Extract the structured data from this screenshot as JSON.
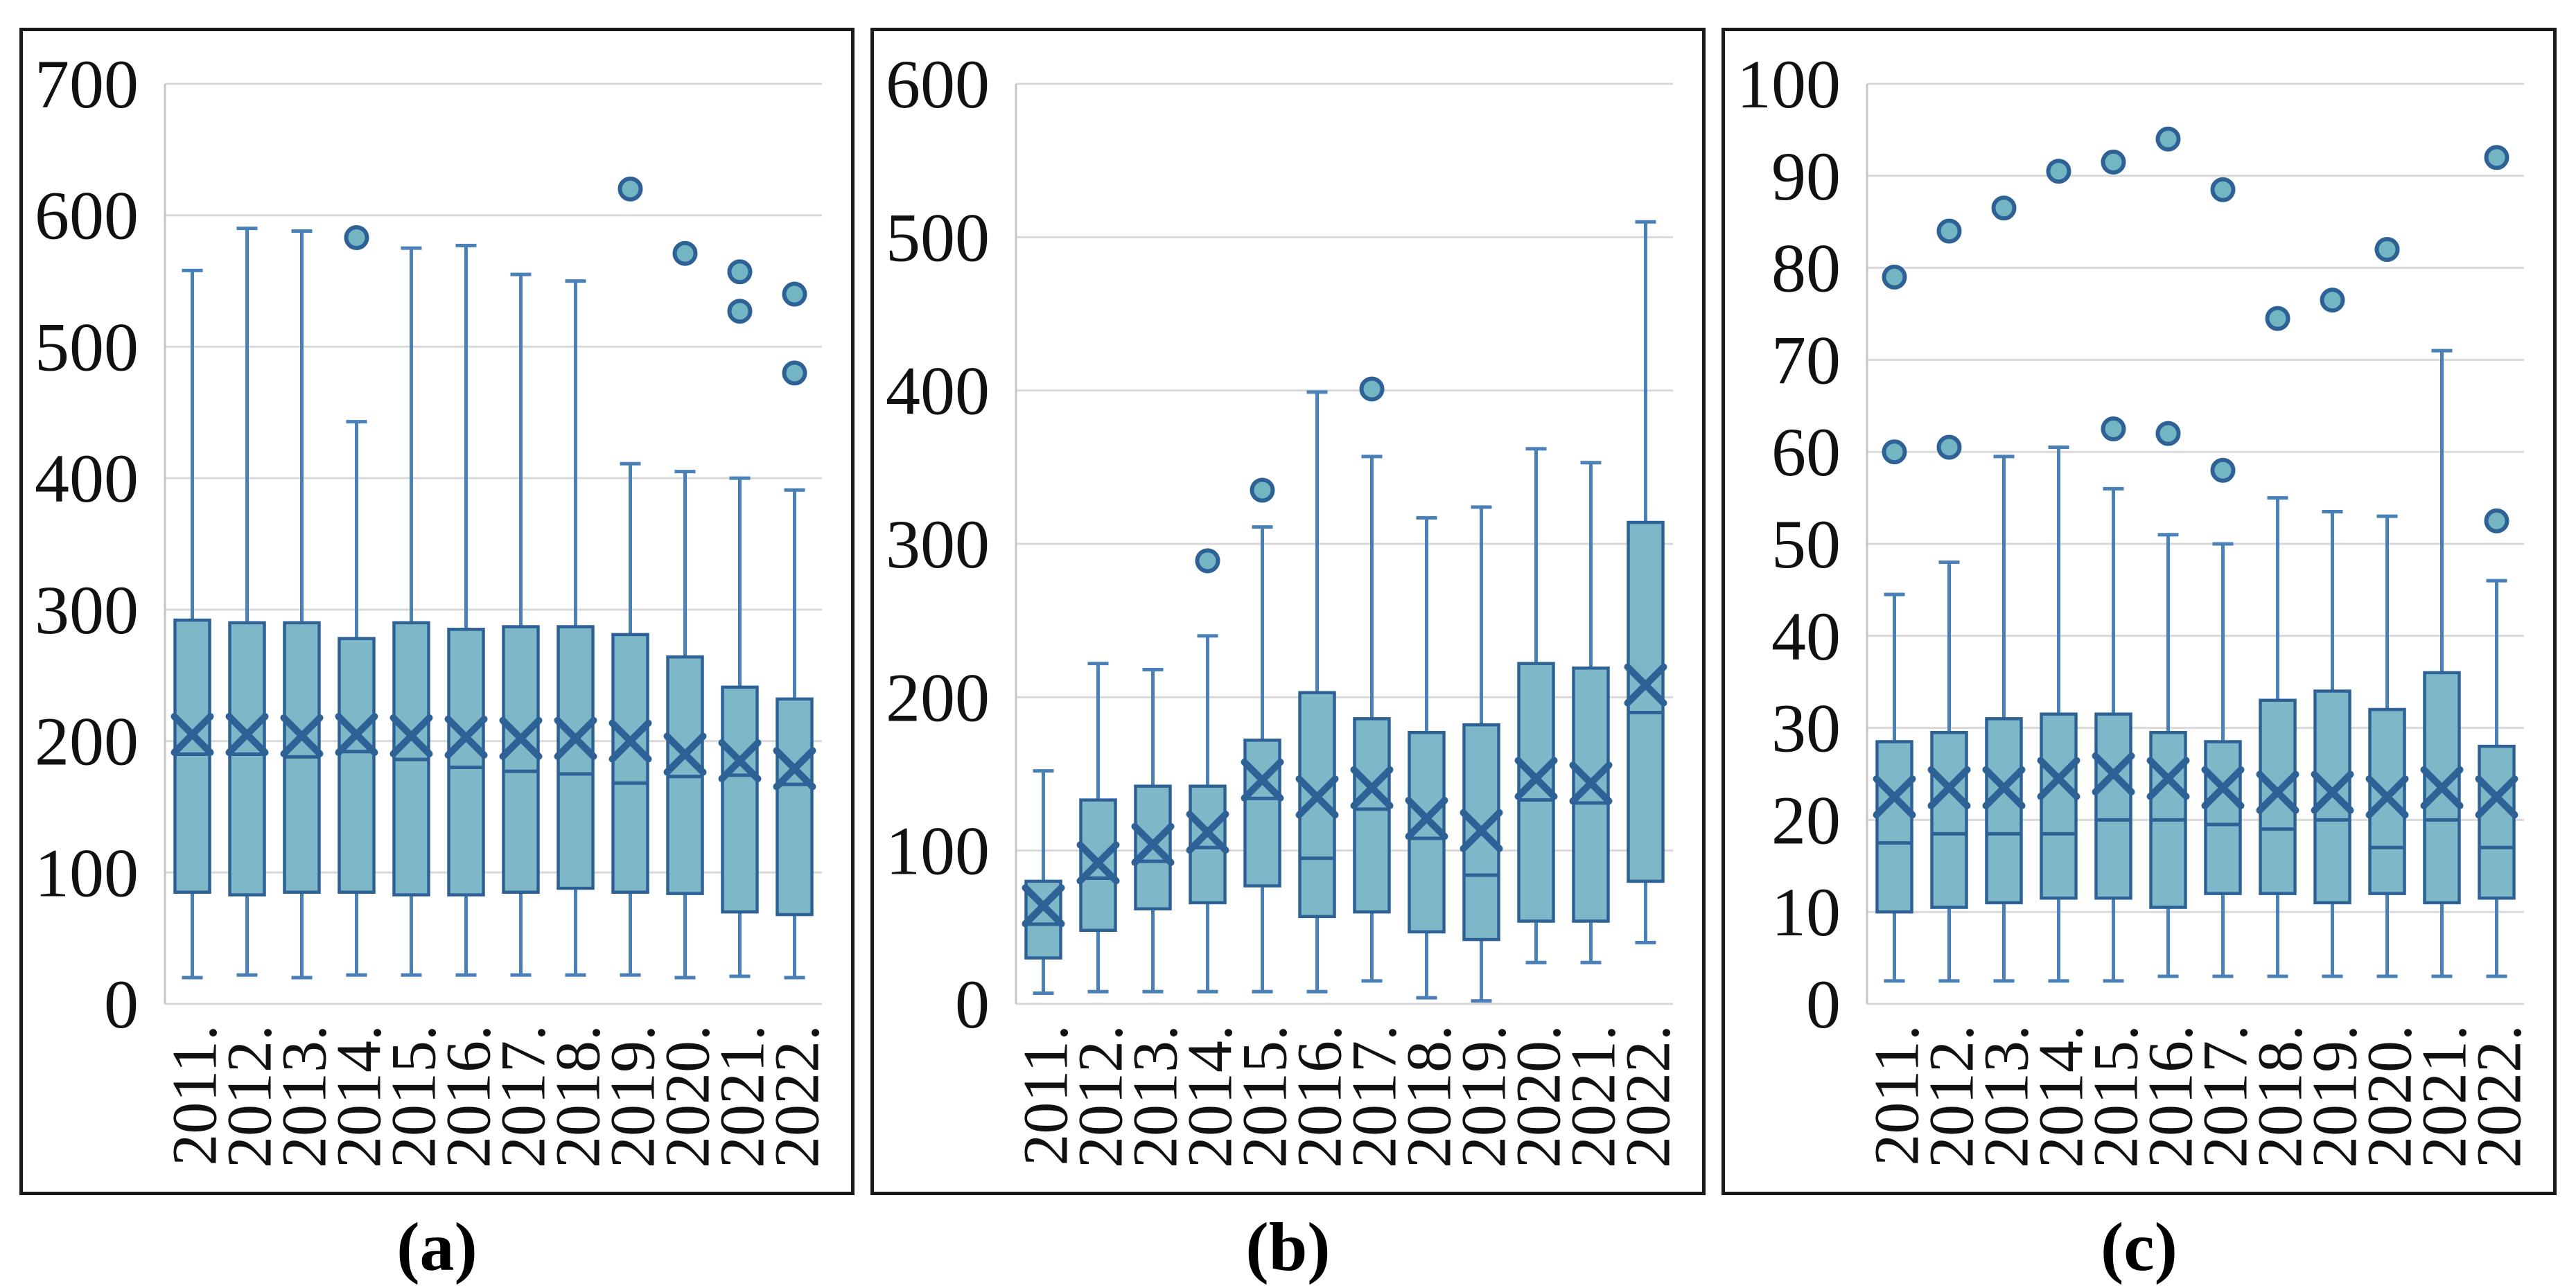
{
  "figure": {
    "background": "#ffffff",
    "panel_count": 3
  },
  "colors": {
    "box_fill": "#7EB8C8",
    "box_stroke": "#2E6296",
    "whisker": "#4A80B8",
    "median": "#2E6296",
    "mean_marker": "#2E6296",
    "outlier_fill": "#74B5C4",
    "outlier_stroke": "#2E6296",
    "gridline": "#D9D9D9",
    "axis_line": "#C6C6C6",
    "panel_border": "#1B1B1B",
    "text": "#111111"
  },
  "chart_data": [
    {
      "id": "a",
      "type": "box",
      "caption": "(a)",
      "ylim": [
        0,
        700
      ],
      "ytick_step": 100,
      "grid": true,
      "legend": false,
      "mean_marker": "x",
      "categories": [
        "2011.",
        "2012.",
        "2013.",
        "2014.",
        "2015.",
        "2016.",
        "2017.",
        "2018.",
        "2019.",
        "2020.",
        "2021.",
        "2022."
      ],
      "series": [
        {
          "category": "2011.",
          "min": 20,
          "q1": 85,
          "median": 190,
          "mean": 205,
          "q3": 292,
          "max": 558,
          "outliers": []
        },
        {
          "category": "2012.",
          "min": 22,
          "q1": 83,
          "median": 190,
          "mean": 205,
          "q3": 290,
          "max": 590,
          "outliers": []
        },
        {
          "category": "2013.",
          "min": 20,
          "q1": 85,
          "median": 188,
          "mean": 204,
          "q3": 290,
          "max": 588,
          "outliers": []
        },
        {
          "category": "2014.",
          "min": 22,
          "q1": 85,
          "median": 192,
          "mean": 205,
          "q3": 278,
          "max": 443,
          "outliers": [
            583
          ]
        },
        {
          "category": "2015.",
          "min": 22,
          "q1": 83,
          "median": 186,
          "mean": 204,
          "q3": 290,
          "max": 575,
          "outliers": []
        },
        {
          "category": "2016.",
          "min": 22,
          "q1": 83,
          "median": 180,
          "mean": 203,
          "q3": 285,
          "max": 577,
          "outliers": []
        },
        {
          "category": "2017.",
          "min": 22,
          "q1": 85,
          "median": 177,
          "mean": 202,
          "q3": 287,
          "max": 555,
          "outliers": []
        },
        {
          "category": "2018.",
          "min": 22,
          "q1": 88,
          "median": 175,
          "mean": 202,
          "q3": 287,
          "max": 550,
          "outliers": []
        },
        {
          "category": "2019.",
          "min": 22,
          "q1": 85,
          "median": 168,
          "mean": 200,
          "q3": 281,
          "max": 411,
          "outliers": [
            620
          ]
        },
        {
          "category": "2020.",
          "min": 20,
          "q1": 84,
          "median": 173,
          "mean": 190,
          "q3": 264,
          "max": 405,
          "outliers": [
            571
          ]
        },
        {
          "category": "2021.",
          "min": 21,
          "q1": 70,
          "median": 174,
          "mean": 185,
          "q3": 241,
          "max": 400,
          "outliers": [
            557,
            527
          ]
        },
        {
          "category": "2022.",
          "min": 20,
          "q1": 68,
          "median": 167,
          "mean": 179,
          "q3": 232,
          "max": 391,
          "outliers": [
            540,
            480
          ]
        }
      ]
    },
    {
      "id": "b",
      "type": "box",
      "caption": "(b)",
      "ylim": [
        0,
        600
      ],
      "ytick_step": 100,
      "grid": true,
      "legend": false,
      "mean_marker": "x",
      "categories": [
        "2011.",
        "2012.",
        "2013.",
        "2014.",
        "2015.",
        "2016.",
        "2017.",
        "2018.",
        "2019.",
        "2020.",
        "2021.",
        "2022."
      ],
      "series": [
        {
          "category": "2011.",
          "min": 7,
          "q1": 30,
          "median": 52,
          "mean": 64,
          "q3": 80,
          "max": 152,
          "outliers": []
        },
        {
          "category": "2012.",
          "min": 8,
          "q1": 48,
          "median": 82,
          "mean": 92,
          "q3": 133,
          "max": 222,
          "outliers": []
        },
        {
          "category": "2013.",
          "min": 8,
          "q1": 62,
          "median": 93,
          "mean": 104,
          "q3": 142,
          "max": 218,
          "outliers": []
        },
        {
          "category": "2014.",
          "min": 8,
          "q1": 66,
          "median": 102,
          "mean": 112,
          "q3": 142,
          "max": 240,
          "outliers": [
            289
          ]
        },
        {
          "category": "2015.",
          "min": 8,
          "q1": 77,
          "median": 134,
          "mean": 146,
          "q3": 172,
          "max": 311,
          "outliers": [
            335
          ]
        },
        {
          "category": "2016.",
          "min": 8,
          "q1": 57,
          "median": 95,
          "mean": 135,
          "q3": 203,
          "max": 399,
          "outliers": []
        },
        {
          "category": "2017.",
          "min": 15,
          "q1": 60,
          "median": 127,
          "mean": 141,
          "q3": 186,
          "max": 357,
          "outliers": [
            401
          ]
        },
        {
          "category": "2018.",
          "min": 4,
          "q1": 47,
          "median": 108,
          "mean": 121,
          "q3": 177,
          "max": 317,
          "outliers": []
        },
        {
          "category": "2019.",
          "min": 2,
          "q1": 42,
          "median": 84,
          "mean": 113,
          "q3": 182,
          "max": 324,
          "outliers": []
        },
        {
          "category": "2020.",
          "min": 27,
          "q1": 54,
          "median": 133,
          "mean": 147,
          "q3": 222,
          "max": 362,
          "outliers": []
        },
        {
          "category": "2021.",
          "min": 27,
          "q1": 54,
          "median": 131,
          "mean": 144,
          "q3": 219,
          "max": 353,
          "outliers": []
        },
        {
          "category": "2022.",
          "min": 40,
          "q1": 80,
          "median": 190,
          "mean": 208,
          "q3": 314,
          "max": 510,
          "outliers": []
        }
      ]
    },
    {
      "id": "c",
      "type": "box",
      "caption": "(c)",
      "ylim": [
        0,
        100
      ],
      "ytick_step": 10,
      "grid": true,
      "legend": false,
      "mean_marker": "x",
      "categories": [
        "2011.",
        "2012.",
        "2013.",
        "2014.",
        "2015.",
        "2016.",
        "2017.",
        "2018.",
        "2019.",
        "2020.",
        "2021.",
        "2022."
      ],
      "series": [
        {
          "category": "2011.",
          "min": 2.5,
          "q1": 10,
          "median": 17.5,
          "mean": 22.5,
          "q3": 28.5,
          "max": 44.5,
          "outliers": [
            60,
            79
          ]
        },
        {
          "category": "2012.",
          "min": 2.5,
          "q1": 10.5,
          "median": 18.5,
          "mean": 23.5,
          "q3": 29.5,
          "max": 48,
          "outliers": [
            60.5,
            84
          ]
        },
        {
          "category": "2013.",
          "min": 2.5,
          "q1": 11,
          "median": 18.5,
          "mean": 23.5,
          "q3": 31,
          "max": 59.5,
          "outliers": [
            86.5
          ]
        },
        {
          "category": "2014.",
          "min": 2.5,
          "q1": 11.5,
          "median": 18.5,
          "mean": 24.5,
          "q3": 31.5,
          "max": 60.5,
          "outliers": [
            90.5
          ]
        },
        {
          "category": "2015.",
          "min": 2.5,
          "q1": 11.5,
          "median": 20,
          "mean": 25,
          "q3": 31.5,
          "max": 56,
          "outliers": [
            62.5,
            91.5
          ]
        },
        {
          "category": "2016.",
          "min": 3,
          "q1": 10.5,
          "median": 20,
          "mean": 24.5,
          "q3": 29.5,
          "max": 51,
          "outliers": [
            62,
            94
          ]
        },
        {
          "category": "2017.",
          "min": 3,
          "q1": 12,
          "median": 19.5,
          "mean": 23.5,
          "q3": 28.5,
          "max": 50,
          "outliers": [
            58,
            88.5
          ]
        },
        {
          "category": "2018.",
          "min": 3,
          "q1": 12,
          "median": 19,
          "mean": 23,
          "q3": 33,
          "max": 55,
          "outliers": [
            74.5
          ]
        },
        {
          "category": "2019.",
          "min": 3,
          "q1": 11,
          "median": 20,
          "mean": 23,
          "q3": 34,
          "max": 53.5,
          "outliers": [
            76.5
          ]
        },
        {
          "category": "2020.",
          "min": 3,
          "q1": 12,
          "median": 17,
          "mean": 22.5,
          "q3": 32,
          "max": 53,
          "outliers": [
            82
          ]
        },
        {
          "category": "2021.",
          "min": 3,
          "q1": 11,
          "median": 20,
          "mean": 23.5,
          "q3": 36,
          "max": 71,
          "outliers": []
        },
        {
          "category": "2022.",
          "min": 3,
          "q1": 11.5,
          "median": 17,
          "mean": 22.5,
          "q3": 28,
          "max": 46,
          "outliers": [
            52.5,
            92
          ]
        }
      ]
    }
  ]
}
